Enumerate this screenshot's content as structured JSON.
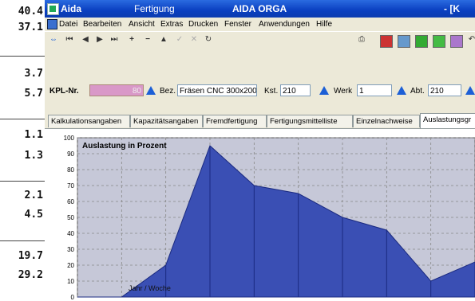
{
  "side_numbers": [
    "40.4",
    "37.1",
    "3.7",
    "5.7",
    "1.1",
    "1.3",
    "2.1",
    "4.5",
    "19.7",
    "29.2"
  ],
  "window": {
    "app_name": "Aida",
    "module": "Fertigung",
    "product": "AIDA ORGA",
    "title_right": "- [K"
  },
  "menu": [
    "Datei",
    "Bearbeiten",
    "Ansicht",
    "Extras",
    "Drucken",
    "Fenster",
    "Anwendungen",
    "Hilfe"
  ],
  "form": {
    "kpl_label": "KPL-Nr.",
    "kpl_value": "80",
    "bez_label": "Bez.",
    "bez_value": "Fräsen CNC 300x200",
    "kst_label": "Kst.",
    "kst_value": "210",
    "werk_label": "Werk",
    "werk_value": "1",
    "abt_label": "Abt.",
    "abt_value": "210"
  },
  "tabs": [
    "Kalkulationsangaben",
    "Kapazitätsangaben",
    "Fremdfertigung",
    "Fertigungsmittelliste",
    "Einzelnachweise",
    "Auslastungsgr"
  ],
  "active_tab": 5,
  "chart_data": {
    "type": "area",
    "title": "Auslastung in Prozent",
    "xlabel": "Jahr / Woche",
    "ylabel": "",
    "ylim": [
      0,
      100
    ],
    "yticks": [
      0,
      10,
      20,
      30,
      40,
      50,
      60,
      70,
      80,
      90,
      100
    ],
    "grid": true,
    "fill_color": "#3a4fb4",
    "background": "#c6c8d8",
    "values": [
      0,
      0,
      20,
      95,
      70,
      65,
      50,
      42,
      10,
      22
    ]
  }
}
